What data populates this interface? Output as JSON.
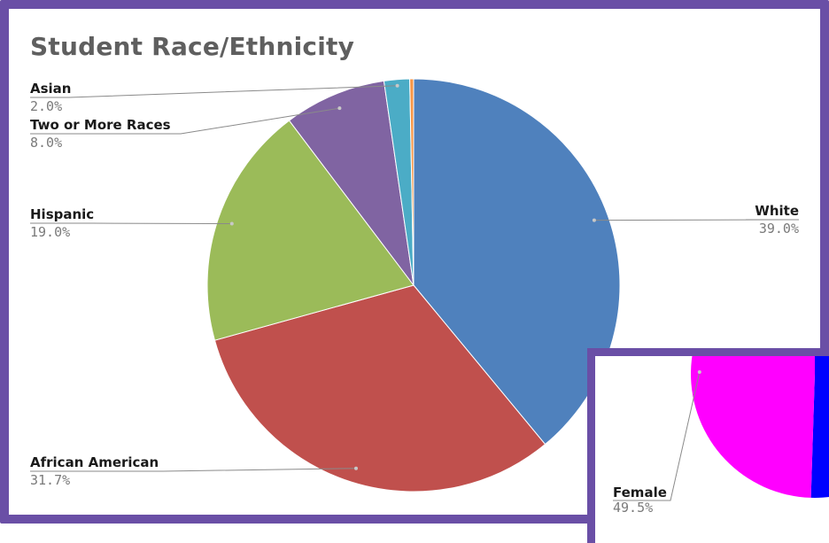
{
  "chart_data": [
    {
      "type": "pie",
      "title": "Student Race/Ethnicity",
      "slices": [
        {
          "label": "White",
          "value": 39.0,
          "pct_text": "39.0%",
          "color": "#4f81bd"
        },
        {
          "label": "African American",
          "value": 31.7,
          "pct_text": "31.7%",
          "color": "#c0504d"
        },
        {
          "label": "Hispanic",
          "value": 19.0,
          "pct_text": "19.0%",
          "color": "#9bbb59"
        },
        {
          "label": "Two or More Races",
          "value": 8.0,
          "pct_text": "8.0%",
          "color": "#8064a2"
        },
        {
          "label": "Asian",
          "value": 2.0,
          "pct_text": "2.0%",
          "color": "#4bacc6"
        },
        {
          "label": "",
          "value": 0.3,
          "pct_text": "",
          "color": "#f79646"
        }
      ]
    },
    {
      "type": "pie",
      "title": "",
      "slices": [
        {
          "label": "Female",
          "value": 49.5,
          "pct_text": "49.5%",
          "color": "#ff00ff"
        },
        {
          "label": "",
          "value": 50.5,
          "pct_text": "",
          "color": "#0000ff"
        }
      ]
    }
  ],
  "frame_color": "#6a4fa6"
}
